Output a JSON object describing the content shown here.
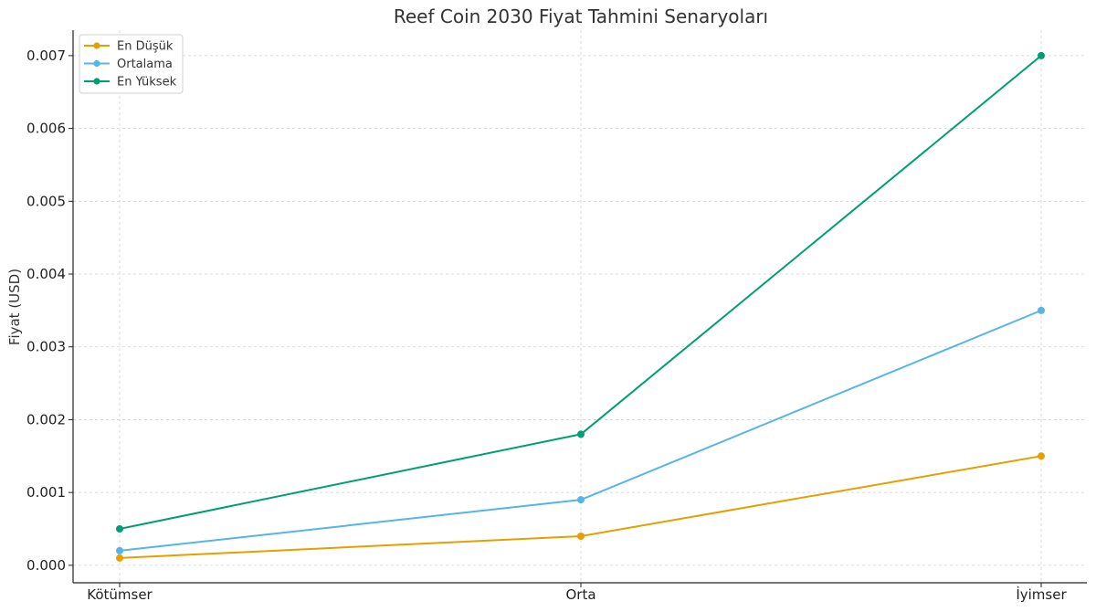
{
  "chart_data": {
    "type": "line",
    "title": "Reef Coin 2030 Fiyat Tahmini Senaryoları",
    "xlabel": "",
    "ylabel": "Fiyat (USD)",
    "categories": [
      "Kötümser",
      "Orta",
      "İyimser"
    ],
    "ylim": [
      -0.00024,
      0.00735
    ],
    "yticks": [
      "0.000",
      "0.001",
      "0.002",
      "0.003",
      "0.004",
      "0.005",
      "0.006",
      "0.007"
    ],
    "grid": true,
    "legend_position": "top-left",
    "series": [
      {
        "name": "En Düşük",
        "color": "#E69F00",
        "values": [
          0.0001,
          0.0004,
          0.0015
        ]
      },
      {
        "name": "Ortalama",
        "color": "#56B4E9",
        "values": [
          0.0002,
          0.0009,
          0.0035
        ]
      },
      {
        "name": "En Yüksek",
        "color": "#009E73",
        "values": [
          0.0005,
          0.0018,
          0.007
        ]
      }
    ]
  }
}
